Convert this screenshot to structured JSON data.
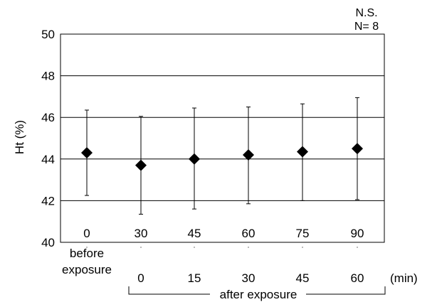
{
  "chart_data": {
    "type": "scatter",
    "title": "",
    "xlabel": "",
    "ylabel": "Ht (%)",
    "ylim": [
      40,
      50
    ],
    "yticks": [
      40,
      42,
      44,
      46,
      48,
      50
    ],
    "grid": true,
    "annotations": {
      "significance": "N.S.",
      "sample_size": "N= 8"
    },
    "categories": [
      "0",
      "30",
      "45",
      "60",
      "75",
      "90"
    ],
    "secondary_labels": [
      "before exposure",
      "0",
      "15",
      "30",
      "45",
      "60"
    ],
    "secondary_unit": "(min)",
    "group_label": "after exposure",
    "before_label_line1": "before",
    "before_label_line2": "exposure",
    "values": [
      44.3,
      43.7,
      44.0,
      44.2,
      44.35,
      44.5
    ],
    "error_low": [
      42.25,
      41.35,
      41.6,
      41.85,
      42.0,
      42.05
    ],
    "error_high": [
      46.35,
      46.05,
      46.45,
      46.5,
      46.65,
      46.95
    ],
    "marker": "diamond",
    "marker_color": "#000000"
  }
}
